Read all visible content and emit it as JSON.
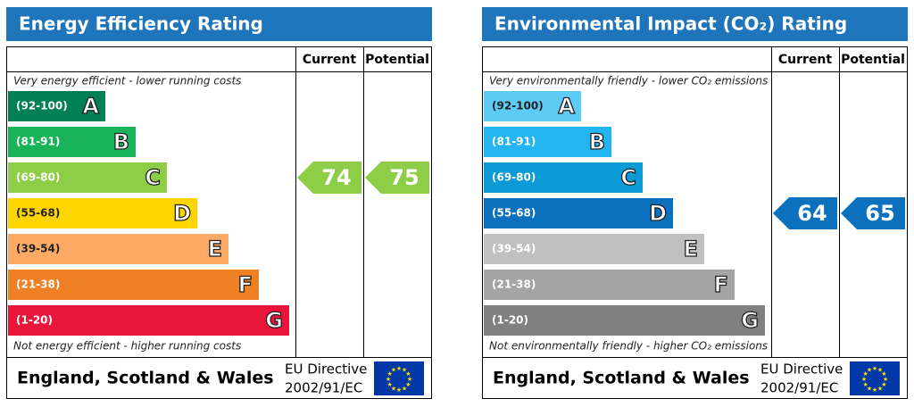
{
  "panels": [
    {
      "title": "Energy Efficiency Rating",
      "current_header": "Current",
      "potential_header": "Potential",
      "top_note": "Very energy efficient - lower running costs",
      "bottom_note": "Not energy efficient - higher running costs",
      "bands": [
        {
          "range": "(92-100)",
          "letter": "A",
          "color": "#008054"
        },
        {
          "range": "(81-91)",
          "letter": "B",
          "color": "#19b459"
        },
        {
          "range": "(69-80)",
          "letter": "C",
          "color": "#8dce46"
        },
        {
          "range": "(55-68)",
          "letter": "D",
          "color": "#ffd500"
        },
        {
          "range": "(39-54)",
          "letter": "E",
          "color": "#fcaa65"
        },
        {
          "range": "(21-38)",
          "letter": "F",
          "color": "#ef8023"
        },
        {
          "range": "(1-20)",
          "letter": "G",
          "color": "#e9153b"
        }
      ],
      "current": 74,
      "potential": 75,
      "footer": "England, Scotland & Wales",
      "directive": [
        "EU Directive",
        "2002/91/EC"
      ]
    },
    {
      "title": "Environmental Impact (CO₂) Rating",
      "current_header": "Current",
      "potential_header": "Potential",
      "top_note": "Very environmentally friendly - lower CO₂ emissions",
      "bottom_note": "Not environmentally friendly - higher CO₂ emissions",
      "bands": [
        {
          "range": "(92-100)",
          "letter": "A",
          "color": "#5ecbf5"
        },
        {
          "range": "(81-91)",
          "letter": "B",
          "color": "#22b5f0"
        },
        {
          "range": "(69-80)",
          "letter": "C",
          "color": "#0a9ad6"
        },
        {
          "range": "(55-68)",
          "letter": "D",
          "color": "#0b71be"
        },
        {
          "range": "(39-54)",
          "letter": "E",
          "color": "#c0c0c0"
        },
        {
          "range": "(21-38)",
          "letter": "F",
          "color": "#a4a4a4"
        },
        {
          "range": "(1-20)",
          "letter": "G",
          "color": "#808080"
        }
      ],
      "current": 64,
      "potential": 65,
      "footer": "England, Scotland & Wales",
      "directive": [
        "EU Directive",
        "2002/91/EC"
      ]
    }
  ]
}
